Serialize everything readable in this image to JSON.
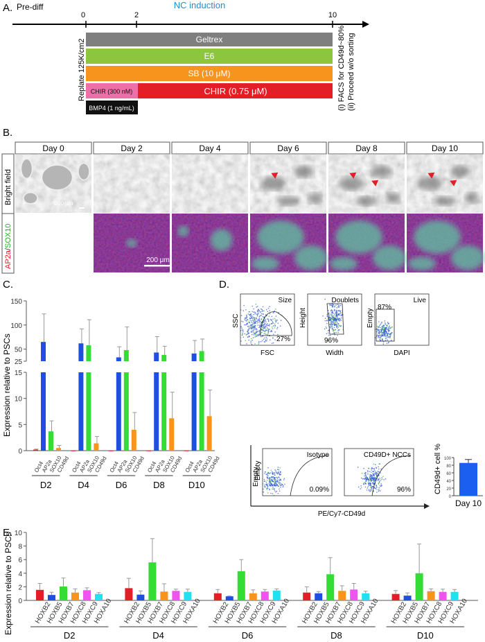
{
  "panelA": {
    "letter": "A.",
    "prediff": "Pre-diff",
    "title": "NC induction",
    "ticks": [
      "0",
      "2",
      "10"
    ],
    "replate": "Replate 125K/cm2",
    "bars": [
      {
        "label": "Geltrex",
        "color": "#7f7f7f"
      },
      {
        "label": "E6",
        "color": "#8cc63e"
      },
      {
        "label": "SB (10 μM)",
        "color": "#f7941d"
      },
      {
        "label": "CHIR (300 nM)",
        "color": "#ee6fa8"
      },
      {
        "label": "CHIR (0.75 μM)",
        "color": "#e31e26"
      },
      {
        "label": "BMP4 (1 ng/mL)",
        "color": "#111111"
      }
    ],
    "notes": [
      "(i) FACS for CD49d~80%",
      "(ii) Proceed w/o sorting"
    ]
  },
  "panelB": {
    "letter": "B.",
    "days": [
      "Day 0",
      "Day 2",
      "Day 4",
      "Day 6",
      "Day 8",
      "Day 10"
    ],
    "row1": "Bright field",
    "row2_a": "AP2a",
    "row2_sep": "/",
    "row2_b": "SOX10",
    "scale1": "200 μm",
    "scale2": "200 μm"
  },
  "panelC": {
    "letter": "C.",
    "ylabel": "Expression relative to PSCs",
    "yticks_upper": [
      "150",
      "100",
      "50",
      "25"
    ],
    "yticks_lower": [
      "15",
      "10",
      "5",
      "0"
    ],
    "genes": [
      "Oct4",
      "AP2a",
      "SOX10",
      "CD49d"
    ],
    "colors": [
      "#e31e26",
      "#1f4fe0",
      "#33dd33",
      "#f7941d"
    ],
    "groups": [
      "D2",
      "D4",
      "D6",
      "D8",
      "D10"
    ]
  },
  "panelD": {
    "letter": "D.",
    "plots": [
      {
        "title": "Size",
        "xlabel": "FSC",
        "ylabel": "SSC",
        "pct": "27%"
      },
      {
        "title": "Doublets",
        "xlabel": "Width",
        "ylabel": "Height",
        "pct": "96%"
      },
      {
        "title": "Live",
        "xlabel": "DAPI",
        "ylabel": "Empty",
        "pct": "87%"
      },
      {
        "title": "Isotype",
        "xlabel": "",
        "ylabel": "Empty",
        "pct": "0.09%"
      },
      {
        "title": "CD49D+ NCCs",
        "xlabel": "",
        "ylabel": "",
        "pct": "96%"
      }
    ],
    "bottom_axis": "PE/Cy7-CD49d",
    "bar_ylabel": "CD49d+ cell %",
    "bar_yticks": [
      "100",
      "80",
      "60",
      "40",
      "20",
      "0"
    ],
    "bar_xlabel": "Day 10",
    "bar_color": "#1a5ff0"
  },
  "panelE": {
    "letter": "E.",
    "ylabel": "Expression relative to PSCs",
    "yticks": [
      "10",
      "8",
      "6",
      "4",
      "2",
      "0"
    ],
    "genes": [
      "HOXB2",
      "HOXB5",
      "HOXB7",
      "HOXC8",
      "HOXC9",
      "HOXA10"
    ],
    "colors": [
      "#e31e26",
      "#1f4fe0",
      "#33dd33",
      "#f7941d",
      "#ee55ee",
      "#22e0f0"
    ],
    "groups": [
      "D2",
      "D4",
      "D6",
      "D8",
      "D10"
    ]
  },
  "chart_data": [
    {
      "type": "bar",
      "panel": "C",
      "ylabel": "Expression relative to PSCs",
      "categories": [
        "D2",
        "D4",
        "D6",
        "D8",
        "D10"
      ],
      "axis_break": [
        15,
        25
      ],
      "ylim": [
        0,
        150
      ],
      "series": [
        {
          "name": "Oct4",
          "values": [
            0.2,
            0.0,
            0.0,
            0.0,
            0.0
          ],
          "errors": [
            0.1,
            0.0,
            0.0,
            0.0,
            0.0
          ]
        },
        {
          "name": "AP2a",
          "values": [
            65,
            62,
            33,
            43,
            41
          ],
          "errors": [
            58,
            30,
            22,
            33,
            27
          ]
        },
        {
          "name": "SOX10",
          "values": [
            3.7,
            58,
            48,
            38,
            46
          ],
          "errors": [
            2.0,
            53,
            48,
            18,
            25
          ]
        },
        {
          "name": "CD49d",
          "values": [
            0.5,
            1.4,
            4.0,
            6.2,
            6.6
          ],
          "errors": [
            0.5,
            1.3,
            3.3,
            5.0,
            5.0
          ]
        }
      ]
    },
    {
      "type": "bar",
      "panel": "D",
      "ylabel": "CD49d+ cell %",
      "categories": [
        "Day 10"
      ],
      "values": [
        86
      ],
      "errors": [
        9
      ],
      "ylim": [
        0,
        100
      ]
    },
    {
      "type": "bar",
      "panel": "E",
      "ylabel": "Expression relative to PSCs",
      "categories": [
        "D2",
        "D4",
        "D6",
        "D8",
        "D10"
      ],
      "ylim": [
        0,
        10
      ],
      "series": [
        {
          "name": "HOXB2",
          "values": [
            1.55,
            1.8,
            1.05,
            1.15,
            0.95
          ],
          "errors": [
            0.95,
            1.45,
            0.55,
            0.85,
            0.5
          ]
        },
        {
          "name": "HOXB5",
          "values": [
            0.8,
            0.85,
            0.6,
            1.05,
            0.7
          ],
          "errors": [
            0.4,
            0.55,
            0.05,
            0.25,
            0.4
          ]
        },
        {
          "name": "HOXB7",
          "values": [
            2.05,
            5.6,
            4.3,
            3.85,
            4.0
          ],
          "errors": [
            1.25,
            3.5,
            1.7,
            2.45,
            4.3
          ]
        },
        {
          "name": "HOXC8",
          "values": [
            1.15,
            1.3,
            1.05,
            1.4,
            1.35
          ],
          "errors": [
            0.55,
            1.15,
            0.5,
            0.75,
            0.35
          ]
        },
        {
          "name": "HOXC9",
          "values": [
            1.5,
            1.4,
            1.3,
            1.6,
            1.25
          ],
          "errors": [
            0.35,
            0.25,
            0.3,
            0.9,
            0.4
          ]
        },
        {
          "name": "HOXA10",
          "values": [
            0.95,
            1.25,
            1.45,
            1.05,
            1.25
          ],
          "errors": [
            0.2,
            0.4,
            0.25,
            0.3,
            0.35
          ]
        }
      ]
    }
  ]
}
